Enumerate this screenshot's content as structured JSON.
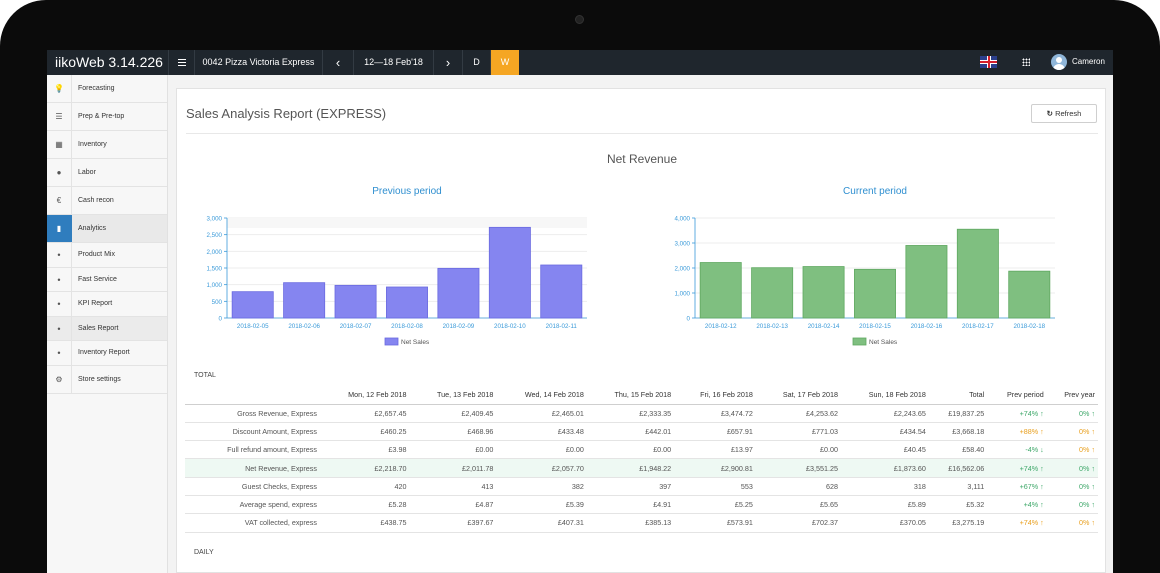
{
  "app": {
    "name": "iikoWeb 3.14.226"
  },
  "topbar": {
    "store": "0042 Pizza Victoria Express",
    "date_range": "12—18 Feb'18",
    "view_d": "D",
    "view_w": "W",
    "user": "Cameron",
    "prev_arrow": "‹",
    "next_arrow": "›"
  },
  "sidebar": {
    "items": [
      {
        "label": "Forecasting",
        "icon": "lightbulb-icon",
        "glyph": "💡"
      },
      {
        "label": "Prep & Pre-top",
        "icon": "list-icon",
        "glyph": "☰"
      },
      {
        "label": "Inventory",
        "icon": "calculator-icon",
        "glyph": "▦"
      },
      {
        "label": "Labor",
        "icon": "user-icon",
        "glyph": "●"
      },
      {
        "label": "Cash recon",
        "icon": "euro-icon",
        "glyph": "€"
      },
      {
        "label": "Analytics",
        "icon": "bar-chart-icon",
        "glyph": "▮"
      }
    ],
    "subitems": [
      {
        "label": "Product Mix"
      },
      {
        "label": "Fast Service"
      },
      {
        "label": "KPI Report"
      },
      {
        "label": "Sales Report"
      },
      {
        "label": "Inventory Report"
      }
    ],
    "settings": {
      "label": "Store settings",
      "icon": "gear-icon",
      "glyph": "⚙"
    }
  },
  "report": {
    "title": "Sales Analysis Report (EXPRESS)",
    "refresh_label": "Refresh",
    "chart_heading": "Net Revenue",
    "total_label": "TOTAL",
    "daily_label": "DAILY"
  },
  "colors": {
    "previous": "#8585f0",
    "current": "#7fbf80",
    "accent": "#f5a623",
    "title_blue": "#2f8fd0"
  },
  "chart_data": [
    {
      "type": "bar",
      "title": "Previous period",
      "categories": [
        "2018-02-05",
        "2018-02-06",
        "2018-02-07",
        "2018-02-08",
        "2018-02-09",
        "2018-02-10",
        "2018-02-11"
      ],
      "series": [
        {
          "name": "Net Sales",
          "values": [
            790,
            1060,
            980,
            930,
            1490,
            2720,
            1590
          ]
        }
      ],
      "ylim": [
        0,
        3000
      ],
      "yticks": [
        "0",
        "500",
        "1,000",
        "1,500",
        "2,000",
        "2,500",
        "3,000"
      ],
      "tickvals": [
        0,
        500,
        1000,
        1500,
        2000,
        2500,
        3000
      ],
      "grid": true,
      "legend": "bottom"
    },
    {
      "type": "bar",
      "title": "Current period",
      "categories": [
        "2018-02-12",
        "2018-02-13",
        "2018-02-14",
        "2018-02-15",
        "2018-02-16",
        "2018-02-17",
        "2018-02-18"
      ],
      "series": [
        {
          "name": "Net Sales",
          "values": [
            2219,
            2012,
            2058,
            1948,
            2901,
            3551,
            1874
          ]
        }
      ],
      "ylim": [
        0,
        4000
      ],
      "yticks": [
        "0",
        "1,000",
        "2,000",
        "3,000",
        "4,000"
      ],
      "tickvals": [
        0,
        1000,
        2000,
        3000,
        4000
      ],
      "grid": true,
      "legend": "bottom"
    }
  ],
  "table": {
    "columns": [
      "",
      "Mon, 12 Feb 2018",
      "Tue, 13 Feb 2018",
      "Wed, 14 Feb 2018",
      "Thu, 15 Feb 2018",
      "Fri, 16 Feb 2018",
      "Sat, 17 Feb 2018",
      "Sun, 18 Feb 2018",
      "Total",
      "Prev period",
      "Prev year"
    ],
    "rows": [
      {
        "label": "Gross Revenue, Express",
        "cells": [
          "£2,657.45",
          "£2,409.45",
          "£2,465.01",
          "£2,333.35",
          "£3,474.72",
          "£4,253.62",
          "£2,243.65",
          "£19,837.25"
        ],
        "prev_period": "+74% ↑",
        "pp_color": "up-g",
        "prev_year": "0% ↑",
        "py_color": "up-g"
      },
      {
        "label": "Discount Amount, Express",
        "cells": [
          "£460.25",
          "£468.96",
          "£433.48",
          "£442.01",
          "£657.91",
          "£771.03",
          "£434.54",
          "£3,668.18"
        ],
        "prev_period": "+88% ↑",
        "pp_color": "up-o",
        "prev_year": "0% ↑",
        "py_color": "up-o"
      },
      {
        "label": "Full refund amount, Express",
        "cells": [
          "£3.98",
          "£0.00",
          "£0.00",
          "£0.00",
          "£13.97",
          "£0.00",
          "£40.45",
          "£58.40"
        ],
        "prev_period": "-4% ↓",
        "pp_color": "dn-g",
        "prev_year": "0% ↑",
        "py_color": "up-o"
      },
      {
        "label": "Net Revenue, Express",
        "cells": [
          "£2,218.70",
          "£2,011.78",
          "£2,057.70",
          "£1,948.22",
          "£2,900.81",
          "£3,551.25",
          "£1,873.60",
          "£16,562.06"
        ],
        "prev_period": "+74% ↑",
        "pp_color": "up-g",
        "prev_year": "0% ↑",
        "py_color": "up-g"
      },
      {
        "label": "Guest Checks, Express",
        "cells": [
          "420",
          "413",
          "382",
          "397",
          "553",
          "628",
          "318",
          "3,111"
        ],
        "prev_period": "+67% ↑",
        "pp_color": "up-g",
        "prev_year": "0% ↑",
        "py_color": "up-g"
      },
      {
        "label": "Average spend, express",
        "cells": [
          "£5.28",
          "£4.87",
          "£5.39",
          "£4.91",
          "£5.25",
          "£5.65",
          "£5.89",
          "£5.32"
        ],
        "prev_period": "+4% ↑",
        "pp_color": "up-g",
        "prev_year": "0% ↑",
        "py_color": "up-g"
      },
      {
        "label": "VAT collected, express",
        "cells": [
          "£438.75",
          "£397.67",
          "£407.31",
          "£385.13",
          "£573.91",
          "£702.37",
          "£370.05",
          "£3,275.19"
        ],
        "prev_period": "+74% ↑",
        "pp_color": "up-o",
        "prev_year": "0% ↑",
        "py_color": "up-o"
      }
    ]
  }
}
